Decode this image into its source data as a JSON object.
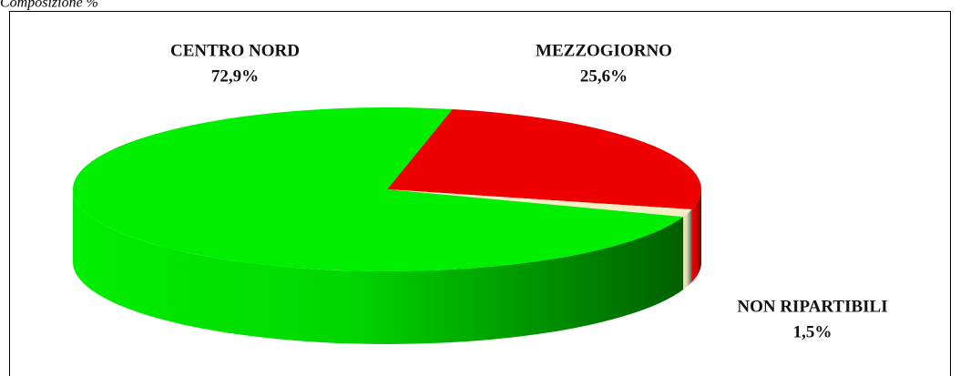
{
  "chart_data": {
    "type": "pie",
    "title": "Composizione %",
    "categories": [
      "MEZZOGIORNO",
      "NON RIPARTIBILI",
      "CENTRO NORD"
    ],
    "values": [
      25.6,
      1.5,
      72.9
    ],
    "value_labels": [
      "25,6%",
      "1,5%",
      "72,9%"
    ],
    "colors": [
      "#ee0000",
      "#f3eec4",
      "#00ee00"
    ]
  }
}
